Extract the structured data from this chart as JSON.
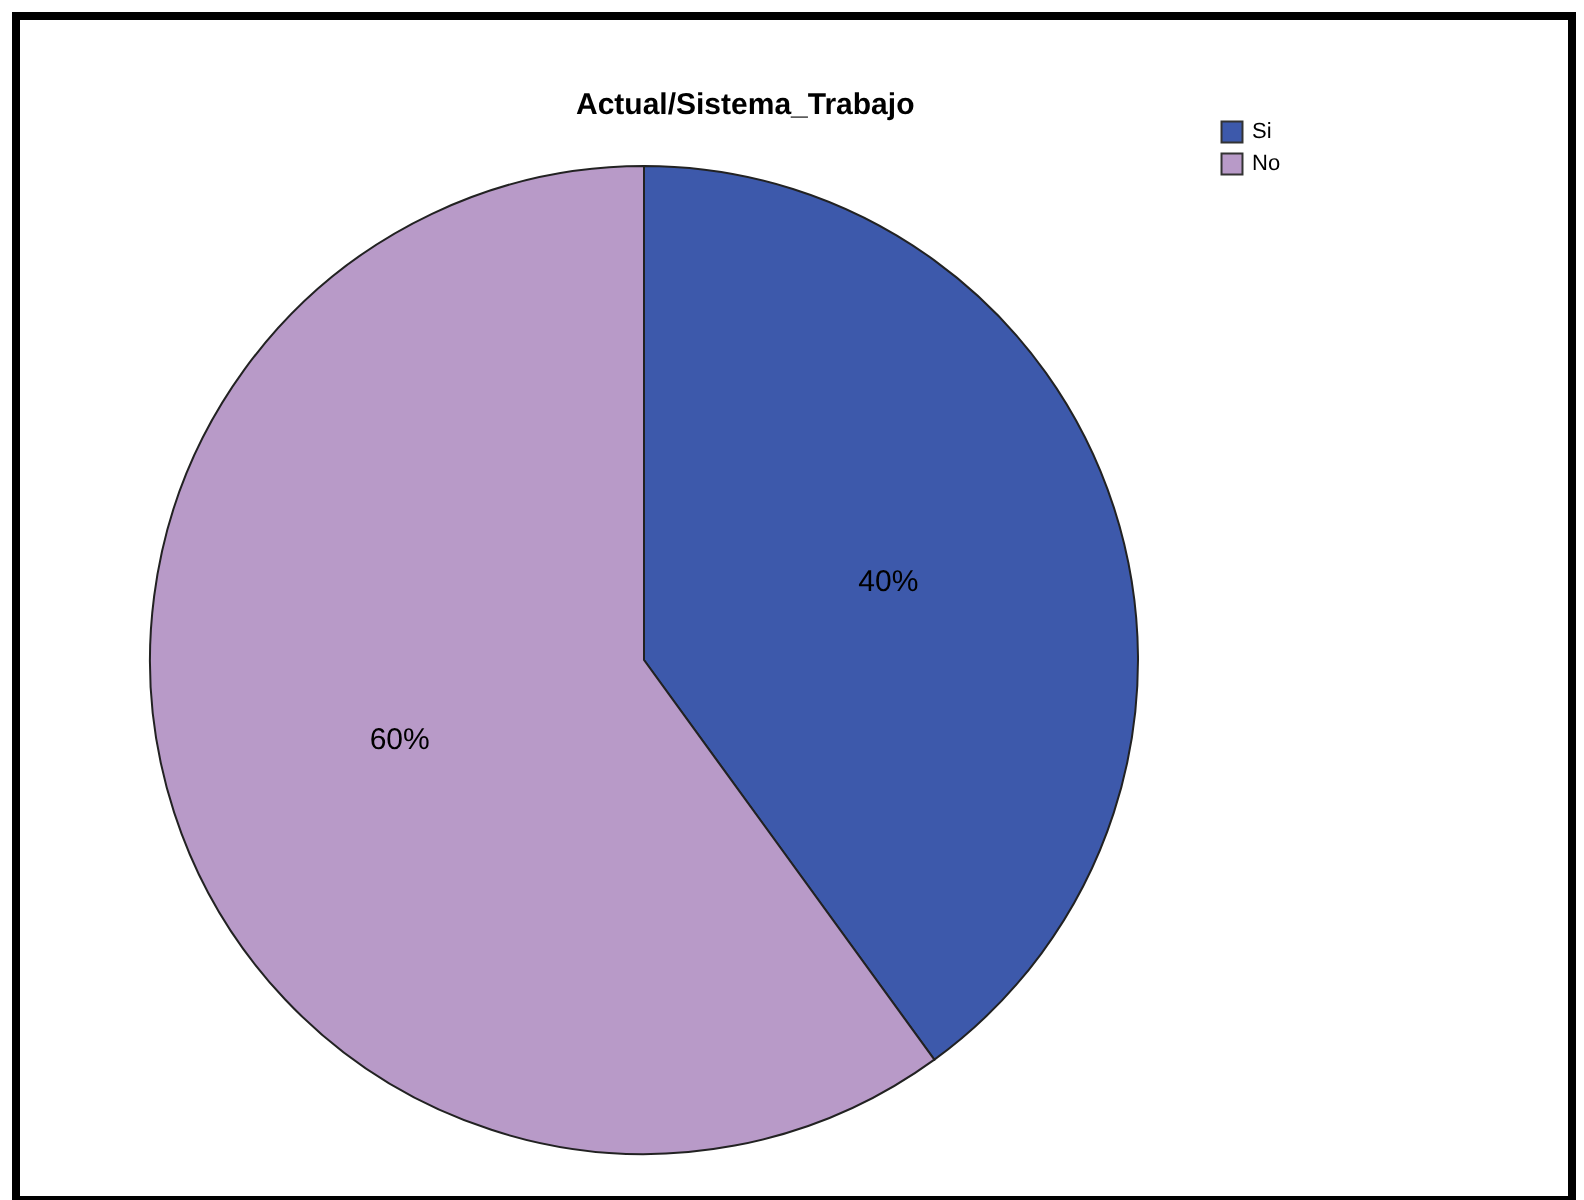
{
  "chart_data": {
    "type": "pie",
    "title": "Actual/Sistema_Trabajo",
    "categories": [
      "Si",
      "No"
    ],
    "values": [
      40,
      60
    ],
    "colors": [
      "#3d59ab",
      "#b89ac8"
    ],
    "value_labels": [
      "40%",
      "60%"
    ],
    "legend": "top right"
  }
}
